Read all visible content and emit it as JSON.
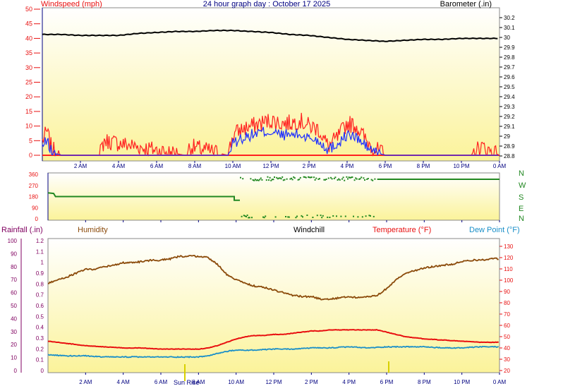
{
  "header": {
    "title": "24 hour graph day : October 17 2025",
    "left_label": "Windspeed (mph)",
    "right_label": "Barometer (.in)"
  },
  "labels": {
    "rainfall": "Rainfall (.in)",
    "humidity": "Humidity",
    "windchill": "Windchill",
    "temperature": "Temperature (°F)",
    "dewpoint": "Dew Point (°F)",
    "sunrise": "Sun Rise",
    "compass": [
      "N",
      "W",
      "S",
      "E",
      "N"
    ]
  },
  "colors": {
    "speed_red": "#ff2020",
    "speed_blue": "#2030ff",
    "barometer": "#000000",
    "direction": "#228822",
    "humidity": "#8b4a0a",
    "temperature": "#e81010",
    "dewpoint": "#1a8fc8",
    "rainfall_label": "#800060",
    "axis_blue": "#000080",
    "bg_top": "#ffffff",
    "bg_bottom": "#fbf39a",
    "sunrise_marker": "#d8d000"
  },
  "chart_data": [
    {
      "id": "wind_baro",
      "type": "line",
      "title": "24 hour graph day : October 17 2025",
      "x_ticks": [
        "2 AM",
        "4 AM",
        "6 AM",
        "8 AM",
        "10 AM",
        "12 PM",
        "2 PM",
        "4 PM",
        "6 PM",
        "8 PM",
        "10 PM",
        "0 AM"
      ],
      "y_left": {
        "label": "Windspeed (mph)",
        "ticks": [
          0,
          5,
          10,
          15,
          20,
          25,
          30,
          35,
          40,
          45,
          50
        ],
        "ylim": [
          0,
          50
        ]
      },
      "y_right": {
        "label": "Barometer (.in)",
        "ticks": [
          28.8,
          28.9,
          29,
          29.1,
          29.2,
          29.3,
          29.4,
          29.5,
          29.6,
          29.7,
          29.8,
          29.9,
          30,
          30.1,
          30.2
        ],
        "ylim": [
          28.75,
          30.3
        ]
      },
      "series": [
        {
          "name": "Barometer (.in)",
          "axis": "right",
          "x": [
            0,
            1,
            2,
            3,
            4,
            5,
            6,
            7,
            8,
            9,
            10,
            11,
            12,
            13,
            14,
            15,
            16,
            17,
            18,
            19,
            20,
            21,
            22,
            23,
            24
          ],
          "values": [
            30.03,
            30.03,
            30.02,
            30.02,
            30.02,
            30.04,
            30.05,
            30.06,
            30.06,
            30.07,
            30.07,
            30.06,
            30.05,
            30.03,
            30.02,
            30.0,
            29.98,
            29.97,
            29.96,
            29.97,
            29.98,
            29.98,
            29.99,
            29.99,
            29.99
          ]
        },
        {
          "x": [
            0,
            0.25,
            0.5,
            1,
            3,
            3.25,
            7.5,
            7.75,
            9.75,
            10,
            10.5,
            11,
            11.5,
            12,
            12.5,
            13,
            13.5,
            14,
            14.5,
            15,
            15.5,
            16,
            16.5,
            17,
            17.5,
            18,
            22.5,
            23,
            24
          ],
          "values": [
            5,
            8,
            2,
            0,
            0,
            5,
            0,
            3,
            0,
            7,
            9,
            10,
            11,
            12,
            11,
            11,
            12,
            10,
            9,
            3,
            6,
            11,
            10,
            5,
            2,
            0,
            0,
            3,
            0
          ]
        },
        {
          "x": [
            0,
            0.25,
            0.5,
            1,
            9.75,
            10,
            10.5,
            11,
            11.5,
            12,
            12.5,
            13,
            13.5,
            14,
            14.5,
            15,
            15.5,
            16,
            16.5,
            17,
            17.5,
            18,
            24
          ],
          "values": [
            3,
            5,
            1,
            0,
            0,
            4,
            6,
            7,
            8,
            8,
            7,
            7,
            7,
            6,
            5,
            2,
            4,
            7,
            6,
            3,
            1,
            0,
            0
          ]
        }
      ]
    },
    {
      "id": "wind_direction",
      "type": "scatter",
      "x_ticks": [
        "2 AM",
        "4 AM",
        "6 AM",
        "8 AM",
        "10 AM",
        "12 PM",
        "2 PM",
        "4 PM",
        "6 PM",
        "8 PM",
        "10 PM",
        "0 AM"
      ],
      "y_left": {
        "ticks": [
          0,
          90,
          180,
          270,
          360
        ],
        "ylim": [
          0,
          360
        ]
      },
      "series": [
        {
          "x": [
            0,
            0.3,
            0.5,
            1,
            2,
            3,
            4,
            5,
            6,
            7,
            8,
            9,
            9.9,
            10,
            10.2,
            12,
            14,
            16,
            17,
            17.5,
            18,
            20,
            22,
            24
          ],
          "values": [
            210,
            200,
            180,
            180,
            180,
            180,
            180,
            180,
            180,
            180,
            180,
            180,
            180,
            150,
            340,
            335,
            330,
            330,
            320,
            325,
            320,
            320,
            320,
            320
          ]
        }
      ]
    },
    {
      "id": "temp_humidity",
      "type": "line",
      "x_ticks": [
        "2 AM",
        "4 AM",
        "6 AM",
        "8 AM",
        "10 AM",
        "12 PM",
        "2 PM",
        "4 PM",
        "6 PM",
        "8 PM",
        "10 PM",
        "0 AM"
      ],
      "y_left_outer": {
        "label": "Rainfall (.in)",
        "ticks": [
          0,
          10,
          20,
          30,
          40,
          50,
          60,
          70,
          80,
          90,
          100
        ],
        "ylim": [
          0,
          100
        ]
      },
      "y_left_inner": {
        "ticks": [
          0,
          0.1,
          0.2,
          0.3,
          0.4,
          0.5,
          0.6,
          0.7,
          0.8,
          0.9,
          1,
          1.1,
          1.2
        ],
        "ylim": [
          0,
          1.2
        ]
      },
      "y_right": {
        "ticks": [
          20,
          30,
          40,
          50,
          60,
          70,
          80,
          90,
          100,
          110,
          120,
          130
        ],
        "ylim": [
          20,
          135
        ]
      },
      "series": [
        {
          "name": "Humidity",
          "axis": "outer",
          "x": [
            0,
            0.5,
            1,
            1.5,
            2,
            2.5,
            3,
            3.5,
            4,
            4.5,
            5,
            5.5,
            6,
            6.5,
            7,
            7.5,
            8,
            8.5,
            9,
            9.5,
            10,
            10.5,
            11,
            11.5,
            12,
            12.5,
            13,
            13.5,
            14,
            14.5,
            15,
            15.5,
            16,
            16.5,
            17,
            17.5,
            18,
            18.5,
            19,
            19.5,
            20,
            20.5,
            21,
            21.5,
            22,
            22.5,
            23,
            23.5,
            24
          ],
          "values": [
            67,
            70,
            72,
            75,
            78,
            78,
            80,
            81,
            83,
            83,
            84,
            85,
            85,
            86,
            88,
            88,
            88,
            87,
            82,
            74,
            70,
            67,
            65,
            64,
            62,
            60,
            58,
            57,
            57,
            55,
            55,
            56,
            57,
            56,
            57,
            58,
            63,
            70,
            75,
            77,
            79,
            80,
            81,
            82,
            84,
            85,
            85,
            86,
            86
          ]
        },
        {
          "name": "Temperature (°F)",
          "axis": "right",
          "x": [
            0,
            0.5,
            1,
            1.5,
            2,
            3,
            4,
            5,
            6,
            7,
            7.5,
            8,
            8.5,
            9,
            9.5,
            10,
            10.5,
            11,
            11.5,
            12,
            12.5,
            13,
            13.5,
            14,
            14.5,
            15,
            15.5,
            16,
            16.5,
            17,
            17.5,
            18,
            18.5,
            19,
            20,
            21,
            22,
            23,
            24
          ],
          "values": [
            46,
            45,
            44,
            43,
            42,
            41,
            40,
            40,
            39,
            39,
            39,
            39,
            40,
            42,
            45,
            48,
            50,
            51,
            51,
            52,
            52,
            53,
            54,
            55,
            55,
            56,
            56,
            56,
            56,
            56,
            56,
            54,
            52,
            50,
            48,
            47,
            46,
            45,
            45
          ]
        },
        {
          "name": "Dew Point (°F)",
          "axis": "right",
          "x": [
            0,
            1,
            2,
            3,
            4,
            5,
            6,
            7,
            8,
            8.5,
            9,
            9.5,
            10,
            11,
            12,
            13,
            14,
            15,
            16,
            17,
            18,
            19,
            20,
            21,
            22,
            23,
            24
          ],
          "values": [
            34,
            33,
            33,
            32,
            32,
            32,
            32,
            32,
            32,
            33,
            35,
            37,
            38,
            38,
            39,
            39,
            40,
            40,
            41,
            40,
            41,
            41,
            41,
            40,
            40,
            41,
            41
          ]
        }
      ]
    }
  ]
}
